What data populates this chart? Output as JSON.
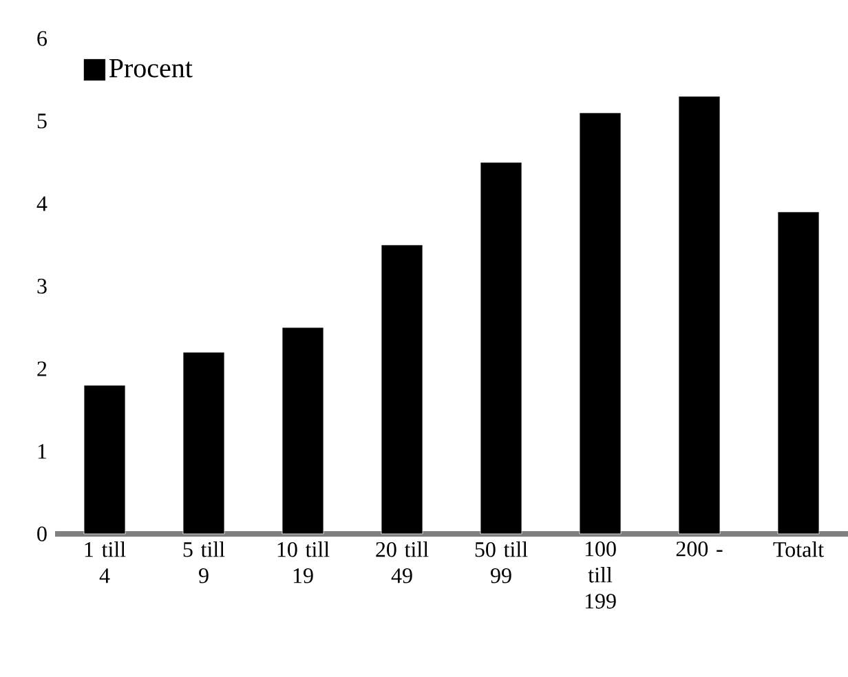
{
  "chart_data": {
    "type": "bar",
    "categories": [
      "1 till 4",
      "5 till 9",
      "10 till 19",
      "20 till 49",
      "50 till 99",
      "100 till 199",
      "200 -",
      "Totalt"
    ],
    "series": [
      {
        "name": "Procent",
        "color": "#000000",
        "values": [
          1.8,
          2.2,
          2.5,
          3.5,
          4.5,
          5.1,
          5.3,
          3.9
        ]
      }
    ],
    "ylim": [
      0,
      6
    ],
    "yticks": [
      0,
      1,
      2,
      3,
      4,
      5,
      6
    ],
    "legend": "top left"
  }
}
